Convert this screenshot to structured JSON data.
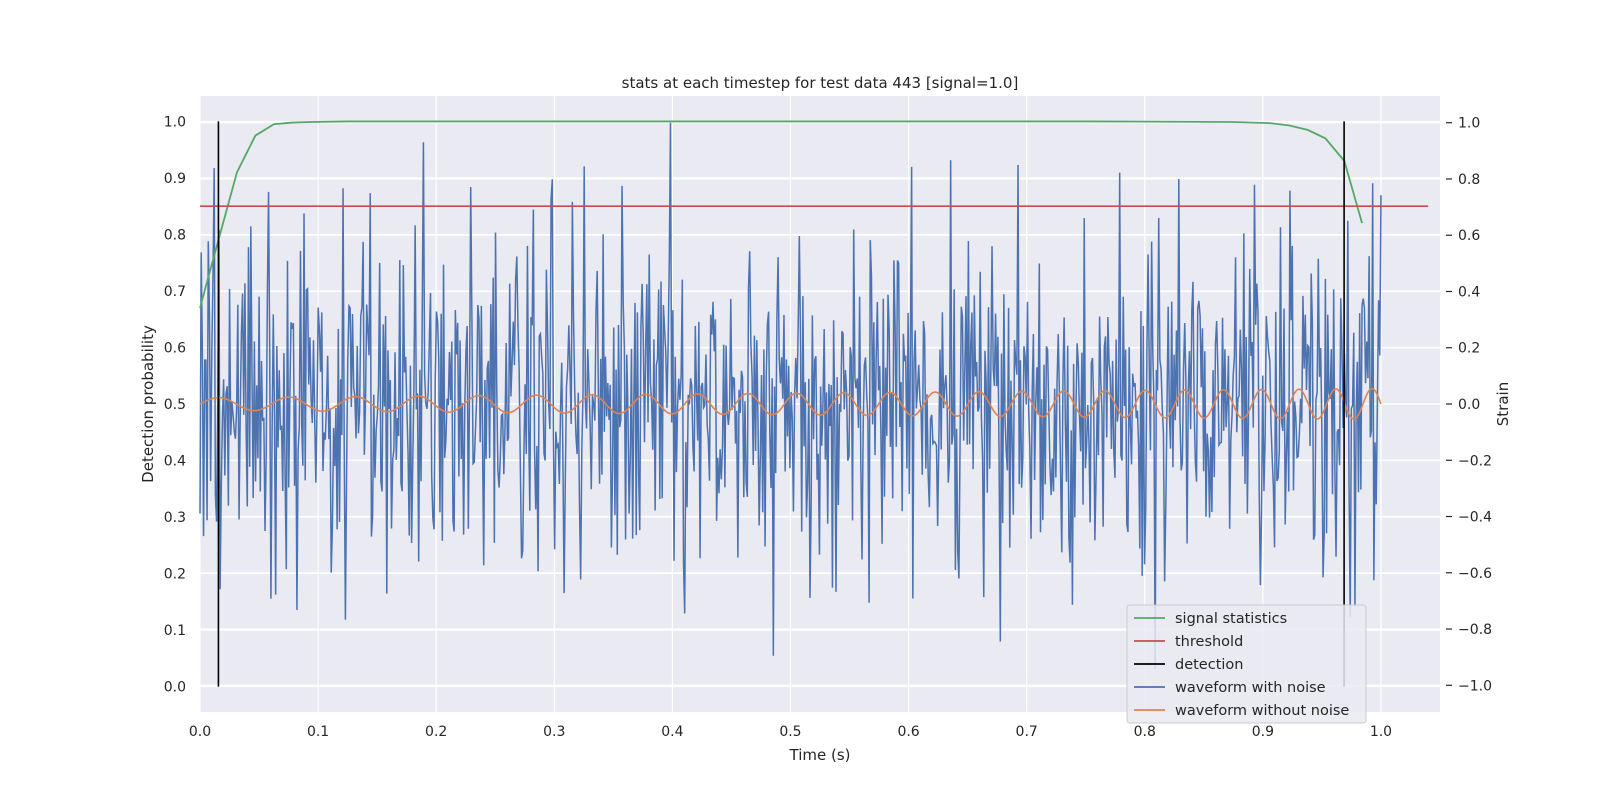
{
  "chart_data": {
    "type": "line",
    "title": "stats at each timestep for test data 443 [signal=1.0]",
    "xlabel": "Time (s)",
    "ylabel": "Detection probability",
    "y2label": "Strain",
    "xlim": [
      0.0,
      1.05
    ],
    "ylim": [
      -0.045,
      1.045
    ],
    "y2lim": [
      -1.095,
      1.095
    ],
    "xticks": [
      "0.0",
      "0.1",
      "0.2",
      "0.3",
      "0.4",
      "0.5",
      "0.6",
      "0.7",
      "0.8",
      "0.9",
      "1.0"
    ],
    "yticks": [
      "0.0",
      "0.1",
      "0.2",
      "0.3",
      "0.4",
      "0.5",
      "0.6",
      "0.7",
      "0.8",
      "0.9",
      "1.0"
    ],
    "y2ticks": [
      "−1.0",
      "−0.8",
      "−0.6",
      "−0.4",
      "−0.2",
      "0.0",
      "0.2",
      "0.4",
      "0.6",
      "0.8",
      "1.0"
    ],
    "grid": true,
    "legend_position": "lower-right",
    "colors": {
      "signal_statistics": "#55a868",
      "threshold": "#c44e52",
      "detection": "#000000",
      "waveform_with_noise": "#4c72b0",
      "waveform_without_noise": "#dd8452",
      "background": "#eaeaf2"
    },
    "series": [
      {
        "name": "signal statistics",
        "axis": "left",
        "x": [
          0.0,
          0.0156,
          0.0313,
          0.0469,
          0.0625,
          0.0781,
          0.0938,
          0.125,
          0.25,
          0.5,
          0.75,
          0.875,
          0.906,
          0.922,
          0.938,
          0.953,
          0.969,
          0.984
        ],
        "values": [
          0.67,
          0.79,
          0.91,
          0.975,
          0.995,
          0.998,
          0.999,
          1.0,
          1.0,
          1.0,
          1.0,
          0.999,
          0.997,
          0.993,
          0.985,
          0.97,
          0.93,
          0.82
        ]
      },
      {
        "name": "threshold",
        "axis": "left",
        "x": [
          0.0,
          1.04
        ],
        "values": [
          0.85,
          0.85
        ]
      },
      {
        "name": "detection",
        "axis": "left",
        "segments": [
          {
            "x": 0.0156,
            "y": [
              0.0,
              1.0
            ]
          },
          {
            "x": 0.9688,
            "y": [
              0.0,
              1.0
            ]
          }
        ]
      },
      {
        "name": "waveform with noise",
        "axis": "right",
        "x_range": [
          0.0,
          1.0
        ],
        "n_points": 1000,
        "std": 0.3,
        "min": -1.0,
        "max": 1.0
      },
      {
        "name": "waveform without noise",
        "axis": "right",
        "x_range": [
          0.0,
          1.0
        ],
        "n_points": 1000,
        "amplitude_start": 0.022,
        "amplitude_end": 0.055,
        "freq_start_hz": 16,
        "freq_end_hz": 33
      }
    ],
    "legend": [
      "signal statistics",
      "threshold",
      "detection",
      "waveform with noise",
      "waveform without noise"
    ]
  }
}
